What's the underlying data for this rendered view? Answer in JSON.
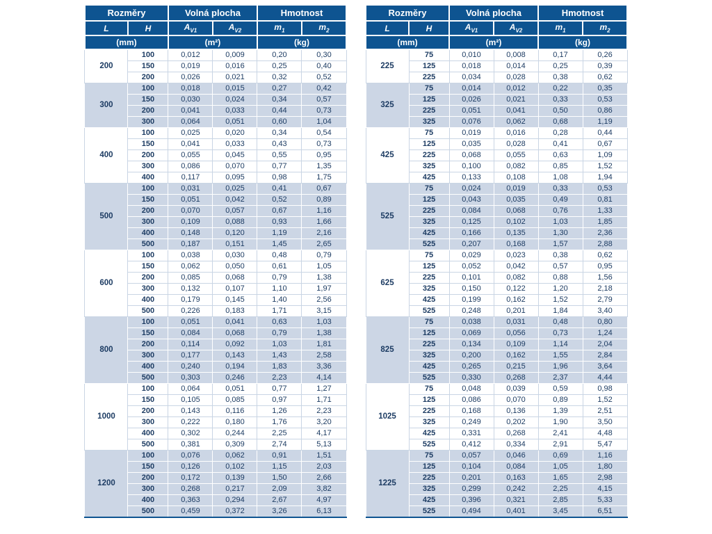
{
  "header": {
    "rozmery": "Rozměry",
    "volna_plocha": "Volná plocha",
    "hmotnost": "Hmotnost",
    "l": "L",
    "h": "H",
    "a": "A",
    "a1_sub": "V1",
    "a2_sub": "V2",
    "m": "m",
    "m1_sub": "1",
    "m2_sub": "2",
    "unit_mm": "(mm)",
    "unit_m2": "(m²)",
    "unit_kg": "(kg)"
  },
  "colors": {
    "header_bg": "#0e5491",
    "alt_row_bg": "#ccd6e5",
    "data_text": "#1d3c63"
  },
  "tables": [
    {
      "groups": [
        {
          "L": "200",
          "rows": [
            [
              "100",
              "0,012",
              "0,009",
              "0,20",
              "0,30"
            ],
            [
              "150",
              "0,019",
              "0,016",
              "0,25",
              "0,40"
            ],
            [
              "200",
              "0,026",
              "0,021",
              "0,32",
              "0,52"
            ]
          ]
        },
        {
          "L": "300",
          "rows": [
            [
              "100",
              "0,018",
              "0,015",
              "0,27",
              "0,42"
            ],
            [
              "150",
              "0,030",
              "0,024",
              "0,34",
              "0,57"
            ],
            [
              "200",
              "0,041",
              "0,033",
              "0,44",
              "0,73"
            ],
            [
              "300",
              "0,064",
              "0,051",
              "0,60",
              "1,04"
            ]
          ]
        },
        {
          "L": "400",
          "rows": [
            [
              "100",
              "0,025",
              "0,020",
              "0,34",
              "0,54"
            ],
            [
              "150",
              "0,041",
              "0,033",
              "0,43",
              "0,73"
            ],
            [
              "200",
              "0,055",
              "0,045",
              "0,55",
              "0,95"
            ],
            [
              "300",
              "0,086",
              "0,070",
              "0,77",
              "1,35"
            ],
            [
              "400",
              "0,117",
              "0,095",
              "0,98",
              "1,75"
            ]
          ]
        },
        {
          "L": "500",
          "rows": [
            [
              "100",
              "0,031",
              "0,025",
              "0,41",
              "0,67"
            ],
            [
              "150",
              "0,051",
              "0,042",
              "0,52",
              "0,89"
            ],
            [
              "200",
              "0,070",
              "0,057",
              "0,67",
              "1,16"
            ],
            [
              "300",
              "0,109",
              "0,088",
              "0,93",
              "1,66"
            ],
            [
              "400",
              "0,148",
              "0,120",
              "1,19",
              "2,16"
            ],
            [
              "500",
              "0,187",
              "0,151",
              "1,45",
              "2,65"
            ]
          ]
        },
        {
          "L": "600",
          "rows": [
            [
              "100",
              "0,038",
              "0,030",
              "0,48",
              "0,79"
            ],
            [
              "150",
              "0,062",
              "0,050",
              "0,61",
              "1,05"
            ],
            [
              "200",
              "0,085",
              "0,068",
              "0,79",
              "1,38"
            ],
            [
              "300",
              "0,132",
              "0,107",
              "1,10",
              "1,97"
            ],
            [
              "400",
              "0,179",
              "0,145",
              "1,40",
              "2,56"
            ],
            [
              "500",
              "0,226",
              "0,183",
              "1,71",
              "3,15"
            ]
          ]
        },
        {
          "L": "800",
          "rows": [
            [
              "100",
              "0,051",
              "0,041",
              "0,63",
              "1,03"
            ],
            [
              "150",
              "0,084",
              "0,068",
              "0,79",
              "1,38"
            ],
            [
              "200",
              "0,114",
              "0,092",
              "1,03",
              "1,81"
            ],
            [
              "300",
              "0,177",
              "0,143",
              "1,43",
              "2,58"
            ],
            [
              "400",
              "0,240",
              "0,194",
              "1,83",
              "3,36"
            ],
            [
              "500",
              "0,303",
              "0,246",
              "2,23",
              "4,14"
            ]
          ]
        },
        {
          "L": "1000",
          "rows": [
            [
              "100",
              "0,064",
              "0,051",
              "0,77",
              "1,27"
            ],
            [
              "150",
              "0,105",
              "0,085",
              "0,97",
              "1,71"
            ],
            [
              "200",
              "0,143",
              "0,116",
              "1,26",
              "2,23"
            ],
            [
              "300",
              "0,222",
              "0,180",
              "1,76",
              "3,20"
            ],
            [
              "400",
              "0,302",
              "0,244",
              "2,25",
              "4,17"
            ],
            [
              "500",
              "0,381",
              "0,309",
              "2,74",
              "5,13"
            ]
          ]
        },
        {
          "L": "1200",
          "rows": [
            [
              "100",
              "0,076",
              "0,062",
              "0,91",
              "1,51"
            ],
            [
              "150",
              "0,126",
              "0,102",
              "1,15",
              "2,03"
            ],
            [
              "200",
              "0,172",
              "0,139",
              "1,50",
              "2,66"
            ],
            [
              "300",
              "0,268",
              "0,217",
              "2,09",
              "3,82"
            ],
            [
              "400",
              "0,363",
              "0,294",
              "2,67",
              "4,97"
            ],
            [
              "500",
              "0,459",
              "0,372",
              "3,26",
              "6,13"
            ]
          ]
        }
      ]
    },
    {
      "groups": [
        {
          "L": "225",
          "rows": [
            [
              "75",
              "0,010",
              "0,008",
              "0,17",
              "0,26"
            ],
            [
              "125",
              "0,018",
              "0,014",
              "0,25",
              "0,39"
            ],
            [
              "225",
              "0,034",
              "0,028",
              "0,38",
              "0,62"
            ]
          ]
        },
        {
          "L": "325",
          "rows": [
            [
              "75",
              "0,014",
              "0,012",
              "0,22",
              "0,35"
            ],
            [
              "125",
              "0,026",
              "0,021",
              "0,33",
              "0,53"
            ],
            [
              "225",
              "0,051",
              "0,041",
              "0,50",
              "0,86"
            ],
            [
              "325",
              "0,076",
              "0,062",
              "0,68",
              "1,19"
            ]
          ]
        },
        {
          "L": "425",
          "rows": [
            [
              "75",
              "0,019",
              "0,016",
              "0,28",
              "0,44"
            ],
            [
              "125",
              "0,035",
              "0,028",
              "0,41",
              "0,67"
            ],
            [
              "225",
              "0,068",
              "0,055",
              "0,63",
              "1,09"
            ],
            [
              "325",
              "0,100",
              "0,082",
              "0,85",
              "1,52"
            ],
            [
              "425",
              "0,133",
              "0,108",
              "1,08",
              "1,94"
            ]
          ]
        },
        {
          "L": "525",
          "rows": [
            [
              "75",
              "0,024",
              "0,019",
              "0,33",
              "0,53"
            ],
            [
              "125",
              "0,043",
              "0,035",
              "0,49",
              "0,81"
            ],
            [
              "225",
              "0,084",
              "0,068",
              "0,76",
              "1,33"
            ],
            [
              "325",
              "0,125",
              "0,102",
              "1,03",
              "1,85"
            ],
            [
              "425",
              "0,166",
              "0,135",
              "1,30",
              "2,36"
            ],
            [
              "525",
              "0,207",
              "0,168",
              "1,57",
              "2,88"
            ]
          ]
        },
        {
          "L": "625",
          "rows": [
            [
              "75",
              "0,029",
              "0,023",
              "0,38",
              "0,62"
            ],
            [
              "125",
              "0,052",
              "0,042",
              "0,57",
              "0,95"
            ],
            [
              "225",
              "0,101",
              "0,082",
              "0,88",
              "1,56"
            ],
            [
              "325",
              "0,150",
              "0,122",
              "1,20",
              "2,18"
            ],
            [
              "425",
              "0,199",
              "0,162",
              "1,52",
              "2,79"
            ],
            [
              "525",
              "0,248",
              "0,201",
              "1,84",
              "3,40"
            ]
          ]
        },
        {
          "L": "825",
          "rows": [
            [
              "75",
              "0,038",
              "0,031",
              "0,48",
              "0,80"
            ],
            [
              "125",
              "0,069",
              "0,056",
              "0,73",
              "1,24"
            ],
            [
              "225",
              "0,134",
              "0,109",
              "1,14",
              "2,04"
            ],
            [
              "325",
              "0,200",
              "0,162",
              "1,55",
              "2,84"
            ],
            [
              "425",
              "0,265",
              "0,215",
              "1,96",
              "3,64"
            ],
            [
              "525",
              "0,330",
              "0,268",
              "2,37",
              "4,44"
            ]
          ]
        },
        {
          "L": "1025",
          "rows": [
            [
              "75",
              "0,048",
              "0,039",
              "0,59",
              "0,98"
            ],
            [
              "125",
              "0,086",
              "0,070",
              "0,89",
              "1,52"
            ],
            [
              "225",
              "0,168",
              "0,136",
              "1,39",
              "2,51"
            ],
            [
              "325",
              "0,249",
              "0,202",
              "1,90",
              "3,50"
            ],
            [
              "425",
              "0,331",
              "0,268",
              "2,41",
              "4,48"
            ],
            [
              "525",
              "0,412",
              "0,334",
              "2,91",
              "5,47"
            ]
          ]
        },
        {
          "L": "1225",
          "rows": [
            [
              "75",
              "0,057",
              "0,046",
              "0,69",
              "1,16"
            ],
            [
              "125",
              "0,104",
              "0,084",
              "1,05",
              "1,80"
            ],
            [
              "225",
              "0,201",
              "0,163",
              "1,65",
              "2,98"
            ],
            [
              "325",
              "0,299",
              "0,242",
              "2,25",
              "4,15"
            ],
            [
              "425",
              "0,396",
              "0,321",
              "2,85",
              "5,33"
            ],
            [
              "525",
              "0,494",
              "0,401",
              "3,45",
              "6,51"
            ]
          ]
        }
      ]
    }
  ]
}
